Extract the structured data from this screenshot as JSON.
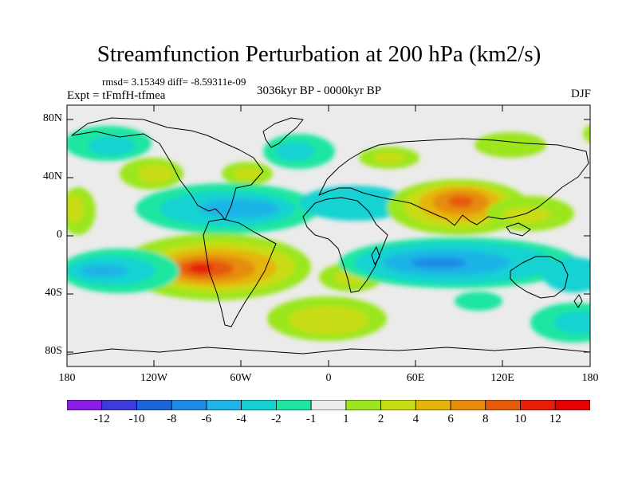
{
  "map": {
    "title": "Streamfunction Perturbation at 200 hPa (km2/s)",
    "stats_text": "rmsd= 3.15349 diff= -8.59311e-09",
    "experiment_text": "Expt = tFmfH-tfmea",
    "period_text": "3036kyr BP - 0000kyr BP",
    "season_text": "DJF",
    "lat_ticks": [
      "80N",
      "40N",
      "0",
      "40S",
      "80S"
    ],
    "lon_ticks": [
      "180",
      "120W",
      "60W",
      "0",
      "60E",
      "120E",
      "180"
    ],
    "colorbar": {
      "labels": [
        "-12",
        "-10",
        "-8",
        "-6",
        "-4",
        "-2",
        "-1",
        "1",
        "2",
        "4",
        "6",
        "8",
        "10",
        "12"
      ],
      "colors": [
        "#8a1ee6",
        "#3c3cdc",
        "#1e64dc",
        "#1e8ce6",
        "#1eb4e6",
        "#14d2d2",
        "#1ee6a0",
        "#ebebeb",
        "#9be61e",
        "#c8dc14",
        "#e6b40a",
        "#e68c0a",
        "#e65a0a",
        "#e61e0a",
        "#e60000"
      ]
    },
    "colors": {
      "background_field": "#ebebeb",
      "coastline": "#000000"
    }
  }
}
